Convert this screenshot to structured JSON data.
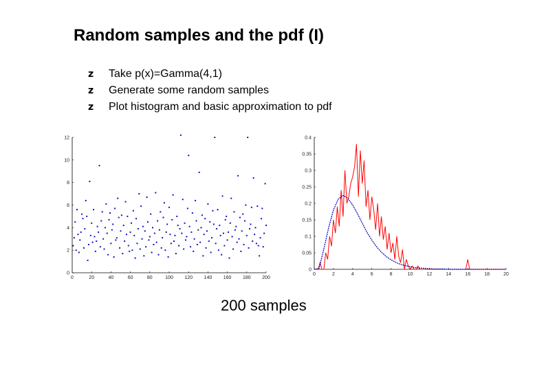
{
  "slide": {
    "title": "Random samples and the pdf (I)",
    "bullet_glyph": "z",
    "bullets": [
      "Take p(x)=Gamma(4,1)",
      "Generate some random samples",
      "Plot histogram and basic approximation to pdf"
    ],
    "caption": "200 samples"
  },
  "colors": {
    "points": "#1010c0",
    "histogram": "#ff0000",
    "pdf": "#0000b0",
    "axis": "#000000"
  },
  "chart_data": [
    {
      "type": "scatter",
      "title": "",
      "xlabel": "",
      "ylabel": "",
      "xlim": [
        0,
        200
      ],
      "ylim": [
        0,
        12
      ],
      "x_ticks": [
        "0",
        "20",
        "40",
        "60",
        "80",
        "100",
        "120",
        "140",
        "160",
        "180",
        "200"
      ],
      "y_ticks": [
        "0",
        "2",
        "4",
        "6",
        "8",
        "10",
        "12"
      ],
      "series": [
        {
          "x": [
            1,
            2,
            3,
            4,
            5,
            6,
            7,
            8,
            9,
            10,
            11,
            12,
            13,
            14,
            15,
            16,
            17,
            18,
            19,
            20,
            21,
            22,
            23,
            24,
            25,
            26,
            27,
            28,
            29,
            30,
            31,
            32,
            33,
            34,
            35,
            36,
            37,
            38,
            39,
            40,
            41,
            42,
            43,
            44,
            45,
            46,
            47,
            48,
            49,
            50,
            51,
            52,
            53,
            54,
            55,
            56,
            57,
            58,
            59,
            60,
            61,
            62,
            63,
            64,
            65,
            66,
            67,
            68,
            69,
            70,
            71,
            72,
            73,
            74,
            75,
            76,
            77,
            78,
            79,
            80,
            81,
            82,
            83,
            84,
            85,
            86,
            87,
            88,
            89,
            90,
            91,
            92,
            93,
            94,
            95,
            96,
            97,
            98,
            99,
            100,
            101,
            102,
            103,
            104,
            105,
            106,
            107,
            108,
            109,
            110,
            111,
            112,
            113,
            114,
            115,
            116,
            117,
            118,
            119,
            120,
            121,
            122,
            123,
            124,
            125,
            126,
            127,
            128,
            129,
            130,
            131,
            132,
            133,
            134,
            135,
            136,
            137,
            138,
            139,
            140,
            141,
            142,
            143,
            144,
            145,
            146,
            147,
            148,
            149,
            150,
            151,
            152,
            153,
            154,
            155,
            156,
            157,
            158,
            159,
            160,
            161,
            162,
            163,
            164,
            165,
            166,
            167,
            168,
            169,
            170,
            171,
            172,
            173,
            174,
            175,
            176,
            177,
            178,
            179,
            180,
            181,
            182,
            183,
            184,
            185,
            186,
            187,
            188,
            189,
            190,
            191,
            192,
            193,
            194,
            195,
            196,
            197,
            198,
            199,
            200
          ],
          "y": [
            2.4,
            3.1,
            4.5,
            2.0,
            5.6,
            3.4,
            1.8,
            2.9,
            3.6,
            5.2,
            4.8,
            2.2,
            3.9,
            6.4,
            5.0,
            1.1,
            2.5,
            8.1,
            3.3,
            4.4,
            2.7,
            5.6,
            3.2,
            1.9,
            2.8,
            4.1,
            3.6,
            9.5,
            2.3,
            4.6,
            5.4,
            3.0,
            2.1,
            4.0,
            6.1,
            3.5,
            1.6,
            4.7,
            5.3,
            2.6,
            3.8,
            4.3,
            1.4,
            5.7,
            2.9,
            3.1,
            6.6,
            4.9,
            2.2,
            3.7,
            5.1,
            1.7,
            4.2,
            2.8,
            6.3,
            3.4,
            5.0,
            2.4,
            1.9,
            3.6,
            4.4,
            2.0,
            5.5,
            3.3,
            1.3,
            4.8,
            2.6,
            3.9,
            7.0,
            2.1,
            5.9,
            3.0,
            4.1,
            1.5,
            3.7,
            2.3,
            6.7,
            4.5,
            2.9,
            3.2,
            5.2,
            1.8,
            4.0,
            2.5,
            3.5,
            7.1,
            2.7,
            4.6,
            1.6,
            3.8,
            5.4,
            2.2,
            3.1,
            4.9,
            6.2,
            2.0,
            3.6,
            4.3,
            1.4,
            5.8,
            3.4,
            2.6,
            4.7,
            6.9,
            2.8,
            3.3,
            1.7,
            5.0,
            4.2,
            2.4,
            3.9,
            12.2,
            3.5,
            6.5,
            2.1,
            4.4,
            2.9,
            3.2,
            5.7,
            10.4,
            4.1,
            2.3,
            3.6,
            5.3,
            1.9,
            3.0,
            6.4,
            4.6,
            2.5,
            3.8,
            8.9,
            2.7,
            4.0,
            5.1,
            1.5,
            3.4,
            4.8,
            2.2,
            3.7,
            6.1,
            2.8,
            4.5,
            1.8,
            3.1,
            5.5,
            4.3,
            12.0,
            2.6,
            3.9,
            5.6,
            2.0,
            4.2,
            3.3,
            1.6,
            6.8,
            3.5,
            2.4,
            4.7,
            5.0,
            2.9,
            3.6,
            1.3,
            4.4,
            6.6,
            3.2,
            2.1,
            5.4,
            3.8,
            4.1,
            2.7,
            8.6,
            3.0,
            4.9,
            1.9,
            3.7,
            5.2,
            2.5,
            4.6,
            6.0,
            3.3,
            12.0,
            2.2,
            3.9,
            4.3,
            5.8,
            2.8,
            8.4,
            3.4,
            4.0,
            2.6,
            5.9,
            2.4,
            1.5,
            3.1,
            4.8,
            5.7,
            2.3,
            3.5,
            7.9,
            4.2
          ]
        }
      ]
    },
    {
      "type": "line",
      "title": "",
      "xlabel": "",
      "ylabel": "",
      "xlim": [
        0,
        20
      ],
      "ylim": [
        0,
        0.4
      ],
      "x_ticks": [
        "0",
        "2",
        "4",
        "6",
        "8",
        "10",
        "12",
        "14",
        "16",
        "18",
        "20"
      ],
      "y_ticks": [
        "0",
        "0.05",
        "0.1",
        "0.15",
        "0.2",
        "0.25",
        "0.3",
        "0.35",
        "0.4"
      ],
      "series": [
        {
          "x": [
            0.0,
            0.2,
            0.4,
            0.6,
            0.8,
            1.0,
            1.2,
            1.4,
            1.6,
            1.8,
            2.0,
            2.2,
            2.4,
            2.6,
            2.8,
            3.0,
            3.2,
            3.4,
            3.6,
            3.8,
            4.0,
            4.2,
            4.4,
            4.6,
            4.8,
            5.0,
            5.2,
            5.4,
            5.6,
            5.8,
            6.0,
            6.2,
            6.4,
            6.6,
            6.8,
            7.0,
            7.2,
            7.4,
            7.6,
            7.8,
            8.0,
            8.2,
            8.4,
            8.6,
            8.8,
            9.0,
            9.2,
            9.4,
            9.6,
            9.8,
            10.0,
            10.2,
            10.4,
            10.6,
            10.8,
            11.0,
            11.2,
            11.4,
            11.6,
            11.8,
            12.0,
            12.2,
            12.4,
            12.6,
            12.8,
            13.0,
            13.2,
            13.4,
            13.6,
            13.8,
            14.0,
            14.2,
            14.4,
            14.6,
            14.8,
            15.0,
            15.2,
            15.4,
            15.6,
            15.8,
            16.0,
            16.2,
            16.4,
            16.6,
            16.8,
            17.0,
            17.2,
            17.4,
            17.6,
            17.8,
            18.0,
            18.2,
            18.4,
            18.6,
            18.8,
            19.0,
            19.2,
            19.4,
            19.6,
            19.8,
            20.0
          ],
          "y": [
            0.0,
            0.0,
            0.0,
            0.02,
            0.0,
            0.0,
            0.05,
            0.03,
            0.1,
            0.07,
            0.15,
            0.11,
            0.19,
            0.13,
            0.24,
            0.16,
            0.3,
            0.2,
            0.22,
            0.26,
            0.28,
            0.31,
            0.38,
            0.22,
            0.36,
            0.26,
            0.33,
            0.19,
            0.24,
            0.15,
            0.22,
            0.18,
            0.12,
            0.2,
            0.1,
            0.16,
            0.09,
            0.13,
            0.06,
            0.11,
            0.05,
            0.08,
            0.03,
            0.1,
            0.04,
            0.02,
            0.06,
            0.0,
            0.03,
            0.01,
            0.0,
            0.01,
            0.0,
            0.0,
            0.01,
            0.0,
            0.0,
            0.0,
            0.0,
            0.0,
            0.0,
            0.0,
            0.0,
            0.0,
            0.0,
            0.0,
            0.0,
            0.0,
            0.0,
            0.0,
            0.0,
            0.0,
            0.0,
            0.0,
            0.0,
            0.0,
            0.0,
            0.0,
            0.0,
            0.0,
            0.03,
            0.0,
            0.0,
            0.0,
            0.0,
            0.0,
            0.0,
            0.0,
            0.0,
            0.0,
            0.0,
            0.0,
            0.0,
            0.0,
            0.0,
            0.0,
            0.0,
            0.0,
            0.0,
            0.0,
            0.0
          ]
        },
        {
          "x": [
            0.0,
            0.5,
            1.0,
            1.5,
            2.0,
            2.5,
            3.0,
            3.5,
            4.0,
            4.5,
            5.0,
            5.5,
            6.0,
            6.5,
            7.0,
            7.5,
            8.0,
            8.5,
            9.0,
            9.5,
            10.0,
            10.5,
            11.0,
            11.5,
            12.0,
            12.5,
            13.0,
            13.5,
            14.0,
            14.5,
            15.0,
            15.5,
            16.0,
            16.5,
            17.0,
            17.5,
            18.0,
            18.5,
            19.0,
            19.5,
            20.0
          ],
          "y": [
            0.0,
            0.003,
            0.061,
            0.126,
            0.18,
            0.213,
            0.224,
            0.216,
            0.195,
            0.169,
            0.14,
            0.112,
            0.089,
            0.068,
            0.052,
            0.039,
            0.029,
            0.021,
            0.015,
            0.011,
            0.008,
            0.005,
            0.004,
            0.003,
            0.002,
            0.001,
            0.001,
            0.001,
            0.0,
            0.0,
            0.0,
            0.0,
            0.0,
            0.0,
            0.0,
            0.0,
            0.0,
            0.0,
            0.0,
            0.0,
            0.0
          ]
        }
      ]
    }
  ]
}
